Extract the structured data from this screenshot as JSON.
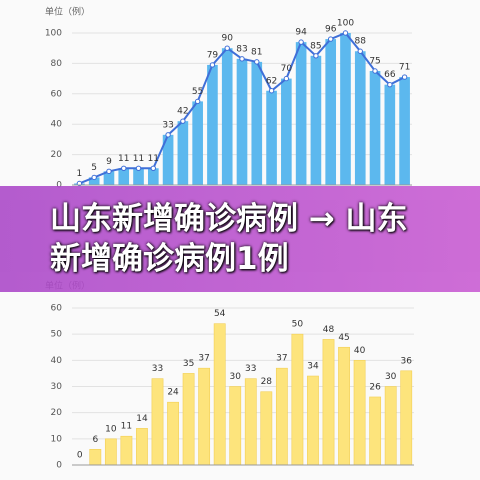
{
  "banner": "山东新增确诊病例 → 山东新增确诊病例1例",
  "chart_data": [
    {
      "type": "bar",
      "y_label": "单位（例）",
      "color": "#5cb8ee",
      "line": true,
      "line_color": "#3f6fd8",
      "values": [
        1,
        5,
        9,
        11,
        11,
        11,
        33,
        42,
        55,
        79,
        90,
        83,
        81,
        62,
        70,
        94,
        85,
        96,
        100,
        88,
        75,
        66,
        71
      ],
      "ylim": [
        0,
        100
      ],
      "yticks": [
        0,
        20,
        40,
        60,
        80,
        100
      ],
      "grid": true
    },
    {
      "type": "bar",
      "y_label": "单位（例）",
      "color": "#fde47c",
      "line": false,
      "values": [
        0,
        6,
        10,
        11,
        14,
        33,
        24,
        35,
        37,
        54,
        30,
        33,
        28,
        37,
        50,
        34,
        48,
        45,
        40,
        26,
        30,
        36
      ],
      "ylim": [
        0,
        60
      ],
      "yticks": [
        0,
        10,
        20,
        30,
        40,
        50,
        60
      ],
      "grid": true
    }
  ]
}
